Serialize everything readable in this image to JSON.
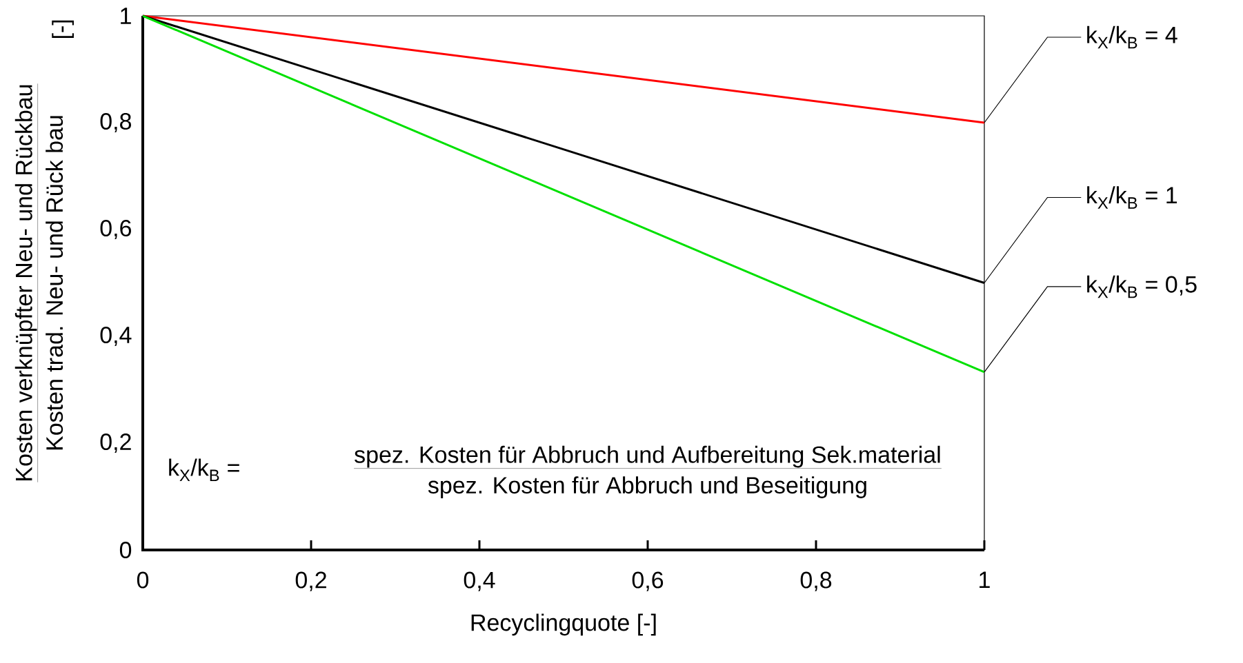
{
  "chart_data": {
    "type": "line",
    "xlabel": "Recyclingquote [-]",
    "ylabel": "Kosten verknüpfter Neu- und Rückbau",
    "x": [
      0,
      1
    ],
    "series": [
      {
        "name": "k$_{X}$/k$_{B}$ = 4",
        "color": "#ff0000",
        "values": [
          1,
          0.8
        ]
      },
      {
        "name": "k$_{X}$/k$_{B}$ = 1",
        "color": "#000000",
        "values": [
          1,
          0.5
        ]
      },
      {
        "name": "k$_{X}$/k$_{B}$ = 0,5",
        "color": "#00e000",
        "values": [
          1,
          0.333
        ]
      }
    ],
    "xlim": [
      0,
      1
    ],
    "ylim": [
      0,
      1
    ],
    "xticks": [
      0,
      {
        "value": 0.2,
        "label": "0,2"
      },
      {
        "value": 0.4,
        "label": "0,4"
      },
      {
        "value": 0.6,
        "label": "0,6"
      },
      {
        "value": 0.8,
        "label": "0,8"
      },
      1
    ],
    "yticks": [
      0,
      {
        "value": 0.2,
        "label": "0,2"
      },
      {
        "value": 0.4,
        "label": "0,4"
      },
      {
        "value": 0.6,
        "label": "0,6"
      },
      {
        "value": 0.8,
        "label": "0,8"
      },
      1
    ],
    "annotations": [
      "Kosten trad. Neu- und Rück  bau",
      "[-]",
      "k$_{X}$/k$_{B}$ =",
      "spez. Kosten für Abbruch und Aufbereitung Sek.material",
      "spez. Kosten für Abbruch und Beseitigung"
    ],
    "marker": "none",
    "line_style": "solid",
    "grid": false
  }
}
